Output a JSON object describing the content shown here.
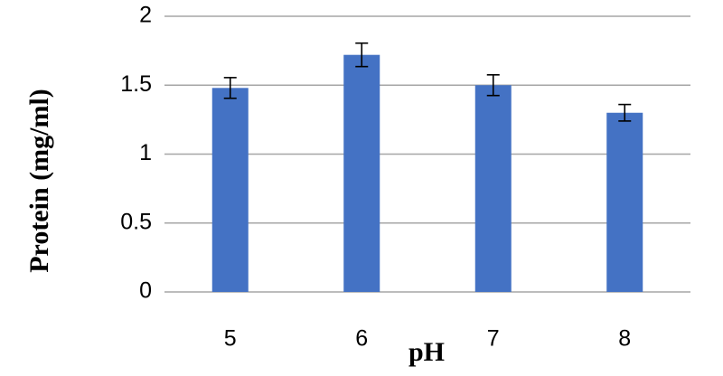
{
  "chart_data": {
    "type": "bar",
    "x_label": "pH",
    "y_label": "Protein (mg/ml)",
    "categories": [
      "5",
      "6",
      "7",
      "8"
    ],
    "values": [
      1.48,
      1.72,
      1.5,
      1.3
    ],
    "errors": [
      0.075,
      0.085,
      0.075,
      0.06
    ],
    "color": "#4472c4",
    "ylim": [
      0,
      2
    ],
    "yticks": [
      0,
      0.5,
      1,
      1.5,
      2
    ],
    "grid": true
  }
}
